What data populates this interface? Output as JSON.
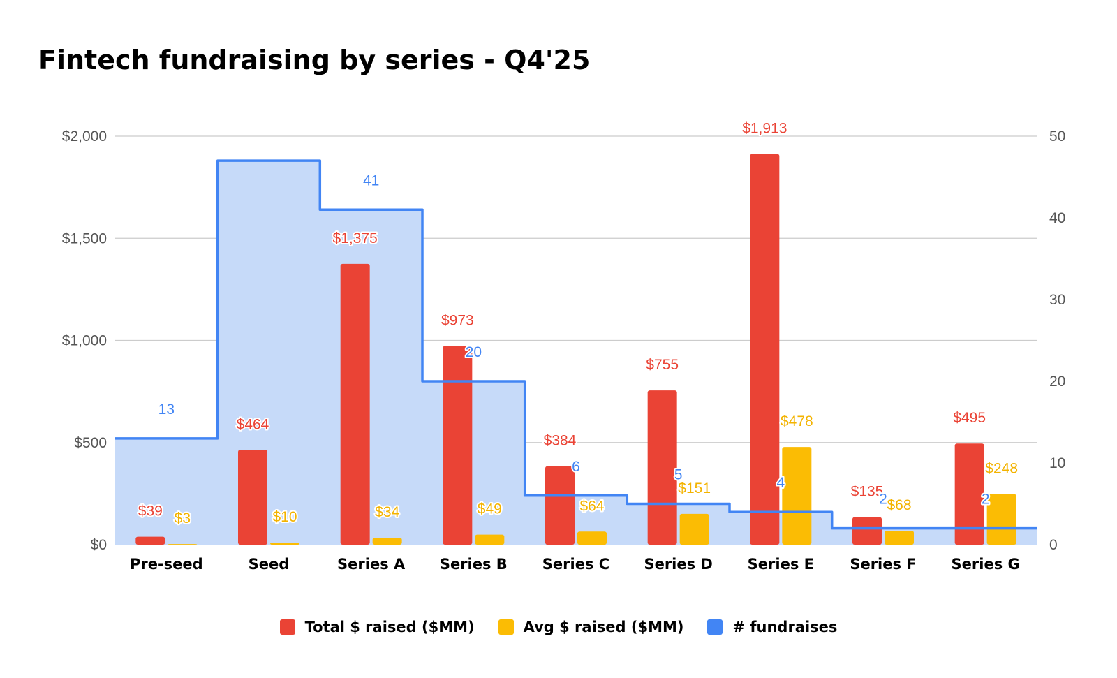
{
  "chart_data": {
    "type": "bar",
    "title": "Fintech fundraising by series - Q4'25",
    "categories": [
      "Pre-seed",
      "Seed",
      "Series A",
      "Series B",
      "Series C",
      "Series D",
      "Series E",
      "Series F",
      "Series G"
    ],
    "series": [
      {
        "name": "Total $ raised ($MM)",
        "kind": "bar",
        "axis": "left",
        "color": "#ea4335",
        "values": [
          39,
          464,
          1375,
          973,
          384,
          755,
          1913,
          135,
          495
        ],
        "labels": [
          "$39",
          "$464",
          "$1,375",
          "$973",
          "$384",
          "$755",
          "$1,913",
          "$135",
          "$495"
        ]
      },
      {
        "name": "Avg $ raised ($MM)",
        "kind": "bar",
        "axis": "left",
        "color": "#fbbc04",
        "values": [
          3,
          10,
          34,
          49,
          64,
          151,
          478,
          68,
          248
        ],
        "labels": [
          "$3",
          "$10",
          "$34",
          "$49",
          "$64",
          "$151",
          "$478",
          "$68",
          "$248"
        ]
      },
      {
        "name": "# fundraises",
        "kind": "stepped-area",
        "axis": "right",
        "color": "#4285f4",
        "values": [
          13,
          47,
          41,
          20,
          6,
          5,
          4,
          2,
          2
        ],
        "labels": [
          "13",
          "",
          "41",
          "20",
          "6",
          "5",
          "4",
          "2",
          "2"
        ]
      }
    ],
    "left_axis": {
      "min": 0,
      "max": 2000,
      "ticks": [
        0,
        500,
        1000,
        1500,
        2000
      ],
      "tick_labels": [
        "$0",
        "$500",
        "$1,000",
        "$1,500",
        "$2,000"
      ]
    },
    "right_axis": {
      "min": 0,
      "max": 50,
      "ticks": [
        0,
        10,
        20,
        30,
        40,
        50
      ],
      "tick_labels": [
        "0",
        "10",
        "20",
        "30",
        "40",
        "50"
      ]
    },
    "grid": true,
    "legend_position": "bottom"
  },
  "colors": {
    "total": "#ea4335",
    "avg": "#fbbc04",
    "count": "#4285f4",
    "area_fill": "#c6daf9",
    "grid": "#cccccc"
  }
}
